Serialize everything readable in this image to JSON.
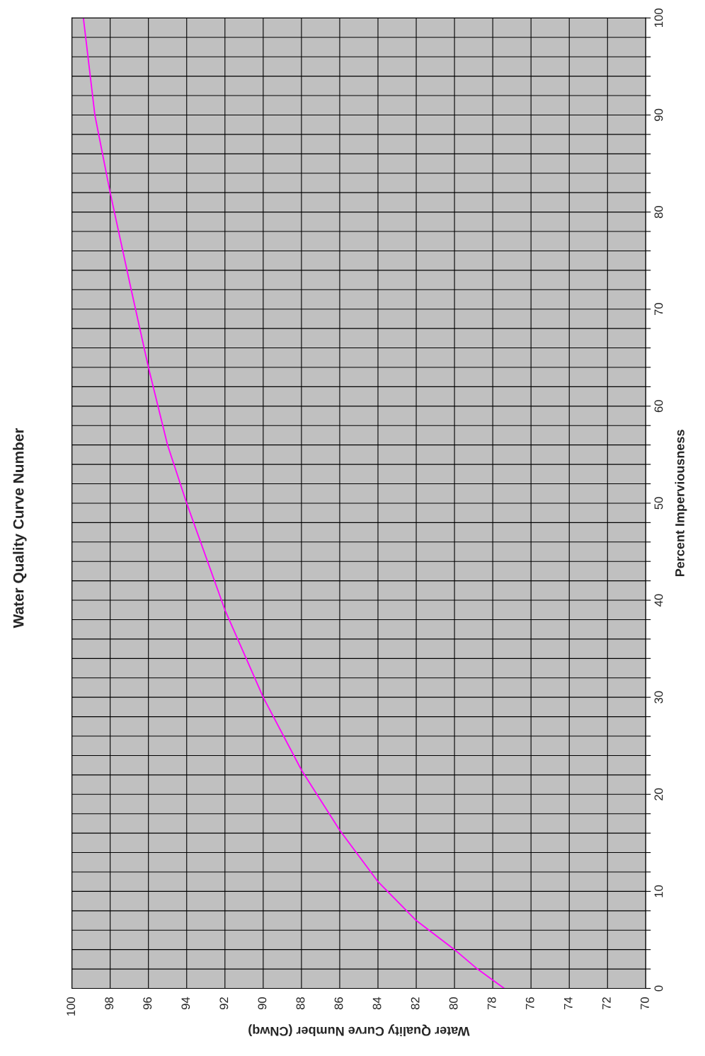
{
  "chart_data": {
    "type": "line",
    "title": "Water Quality Curve Number",
    "ylabel": "Percent Imperviousness",
    "xlabel": "Water Quality Curve Number (CNwq)",
    "x": [
      77.4,
      78.8,
      80,
      82,
      84,
      86,
      88,
      90,
      92,
      94,
      95,
      96,
      96.9,
      98,
      98.8,
      99.4
    ],
    "series": [
      {
        "color": "#ff00ff",
        "values": [
          0,
          2,
          4,
          7,
          11,
          16.3,
          22.5,
          30,
          39,
          50,
          56,
          64,
          72,
          82,
          90,
          100
        ]
      }
    ],
    "ylim": [
      0,
      100
    ],
    "yticks": [
      0,
      {
        "value": 2,
        "label": null
      },
      {
        "value": 4,
        "label": null
      },
      {
        "value": 6,
        "label": null
      },
      {
        "value": 8,
        "label": null
      },
      10,
      {
        "value": 12,
        "label": null
      },
      {
        "value": 14,
        "label": null
      },
      {
        "value": 16,
        "label": null
      },
      {
        "value": 18,
        "label": null
      },
      20,
      {
        "value": 22,
        "label": null
      },
      {
        "value": 24,
        "label": null
      },
      {
        "value": 26,
        "label": null
      },
      {
        "value": 28,
        "label": null
      },
      30,
      {
        "value": 32,
        "label": null
      },
      {
        "value": 34,
        "label": null
      },
      {
        "value": 36,
        "label": null
      },
      {
        "value": 38,
        "label": null
      },
      40,
      {
        "value": 42,
        "label": null
      },
      {
        "value": 44,
        "label": null
      },
      {
        "value": 46,
        "label": null
      },
      {
        "value": 48,
        "label": null
      },
      50,
      {
        "value": 52,
        "label": null
      },
      {
        "value": 54,
        "label": null
      },
      {
        "value": 56,
        "label": null
      },
      {
        "value": 58,
        "label": null
      },
      60,
      {
        "value": 62,
        "label": null
      },
      {
        "value": 64,
        "label": null
      },
      {
        "value": 66,
        "label": null
      },
      {
        "value": 68,
        "label": null
      },
      70,
      {
        "value": 72,
        "label": null
      },
      {
        "value": 74,
        "label": null
      },
      {
        "value": 76,
        "label": null
      },
      {
        "value": 78,
        "label": null
      },
      80,
      {
        "value": 82,
        "label": null
      },
      {
        "value": 84,
        "label": null
      },
      {
        "value": 86,
        "label": null
      },
      {
        "value": 88,
        "label": null
      },
      90,
      {
        "value": 92,
        "label": null
      },
      {
        "value": 94,
        "label": null
      },
      {
        "value": 96,
        "label": null
      },
      {
        "value": 98,
        "label": null
      },
      100
    ],
    "xlim": [
      100,
      70
    ],
    "xticks": [
      100,
      98,
      96,
      94,
      92,
      90,
      88,
      86,
      84,
      82,
      80,
      78,
      76,
      74,
      72,
      70
    ],
    "grid": true,
    "legend": false,
    "marker": "none",
    "line_style": "solid"
  }
}
